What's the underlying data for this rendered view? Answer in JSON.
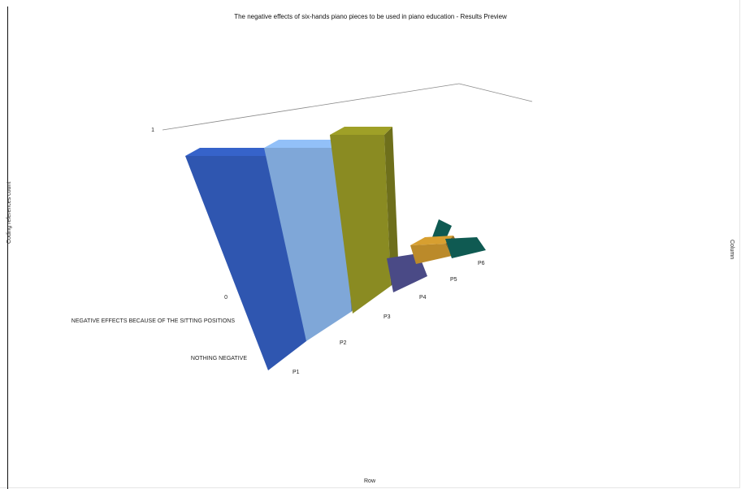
{
  "chart_data": {
    "type": "bar",
    "title": "The negative effects of six-hands piano pieces to be used in piano education - Results Preview",
    "xlabel": "Row",
    "ylabel": "Coding references count",
    "zlabel": "Column",
    "rows": [
      "NEGATIVE EFFECTS BECAUSE OF THE SITTING POSITIONS",
      "NOTHING NEGATIVE"
    ],
    "categories": [
      "P1",
      "P2",
      "P3",
      "P4",
      "P5",
      "P6"
    ],
    "y_ticks": [
      "1",
      "0"
    ],
    "ylim": [
      0,
      1
    ],
    "series": [
      {
        "row": "NOTHING NEGATIVE",
        "values": [
          1,
          1,
          1,
          0,
          1,
          0
        ]
      },
      {
        "row": "NEGATIVE EFFECTS BECAUSE OF THE SITTING POSITIONS",
        "values": [
          0,
          0,
          0,
          0,
          0,
          0
        ]
      }
    ],
    "colors": [
      "#2f56b0",
      "#7fa7d8",
      "#8a8b22",
      "#4a4a86",
      "#bb8a2a",
      "#0f5a52"
    ],
    "grid": true,
    "view": "3d"
  }
}
